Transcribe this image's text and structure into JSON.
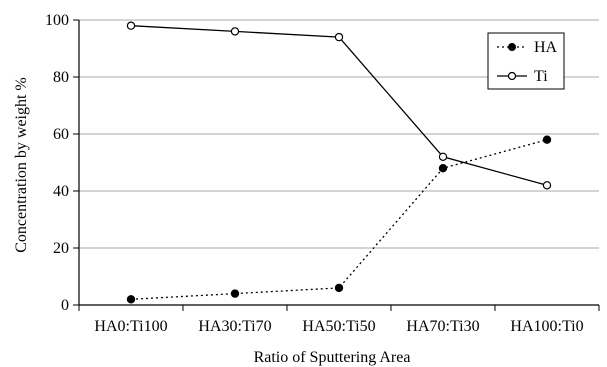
{
  "chart_data": {
    "type": "line",
    "title": "",
    "xlabel": "Ratio of Sputtering Area",
    "ylabel": "Concentration by weight %",
    "categories": [
      "HA0:Ti100",
      "HA30:Ti70",
      "HA50:Ti50",
      "HA70:Ti30",
      "HA100:Ti0"
    ],
    "ylim": [
      0,
      100
    ],
    "yticks": [
      0,
      20,
      40,
      60,
      80,
      100
    ],
    "grid": "horizontal",
    "legend_position": "top-right",
    "series": [
      {
        "name": "HA",
        "line_style": "dotted",
        "marker": "filled-circle",
        "x": [
          0.5,
          1.5,
          2.5,
          3.5,
          4.5
        ],
        "values": [
          2,
          4,
          6,
          48,
          58
        ]
      },
      {
        "name": "Ti",
        "line_style": "solid",
        "marker": "open-circle",
        "x": [
          0.5,
          1.5,
          2.5,
          3.5,
          4.5
        ],
        "values": [
          98,
          96,
          94,
          52,
          42
        ]
      }
    ]
  }
}
